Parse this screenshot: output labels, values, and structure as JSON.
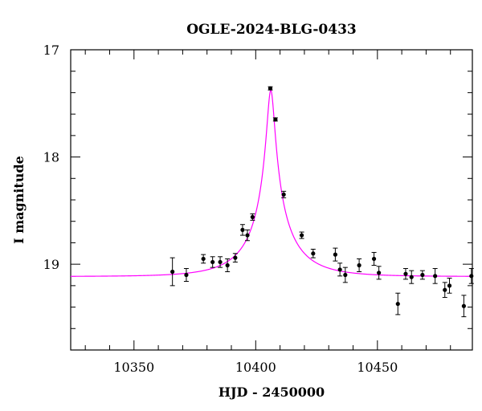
{
  "chart_data": {
    "type": "scatter",
    "title": "OGLE-2024-BLG-0433",
    "xlabel": "HJD - 2450000",
    "ylabel": "I magnitude",
    "xlim": [
      10324,
      10489
    ],
    "ylim": [
      19.8,
      17.0
    ],
    "y_inverted": true,
    "x_ticks_major": [
      10350,
      10400,
      10450
    ],
    "x_tick_labels": [
      "10350",
      "10400",
      "10450"
    ],
    "x_ticks_minor_step": 10,
    "y_ticks_major": [
      17,
      18,
      19
    ],
    "y_tick_labels": [
      "17",
      "18",
      "19"
    ],
    "y_ticks_minor_step": 0.2,
    "grid": false,
    "legend": "none",
    "points_color": "#000000",
    "model_color": "#ff00ff",
    "model": {
      "name": "",
      "type": "point-lens",
      "t0": 10406.2,
      "u0": 0.075,
      "tE": 20,
      "baseline_mag": 19.115,
      "source_flux_fraction": 0.32
    },
    "series": [
      {
        "name": "",
        "x": [
          10365.8,
          10371.5,
          10378.5,
          10382.3,
          10385.4,
          10388.4,
          10391.6,
          10394.6,
          10396.6,
          10398.7,
          10406.0,
          10408.1,
          10411.5,
          10418.9,
          10423.6,
          10432.7,
          10434.6,
          10436.8,
          10442.5,
          10448.6,
          10450.6,
          10458.4,
          10461.6,
          10464.0,
          10468.5,
          10473.7,
          10477.7,
          10479.6,
          10485.5,
          10488.6
        ],
        "y": [
          19.07,
          19.1,
          18.95,
          18.98,
          18.98,
          19.01,
          18.94,
          18.68,
          18.73,
          18.56,
          17.36,
          17.65,
          18.35,
          18.73,
          18.9,
          18.91,
          19.05,
          19.1,
          19.01,
          18.95,
          19.08,
          19.37,
          19.09,
          19.12,
          19.1,
          19.11,
          19.24,
          19.2,
          19.39,
          19.11
        ],
        "yerr": [
          0.13,
          0.06,
          0.04,
          0.05,
          0.05,
          0.06,
          0.04,
          0.05,
          0.05,
          0.03,
          0.015,
          0.015,
          0.03,
          0.03,
          0.04,
          0.06,
          0.06,
          0.07,
          0.06,
          0.06,
          0.06,
          0.1,
          0.05,
          0.06,
          0.04,
          0.07,
          0.07,
          0.07,
          0.1,
          0.07
        ]
      }
    ]
  }
}
